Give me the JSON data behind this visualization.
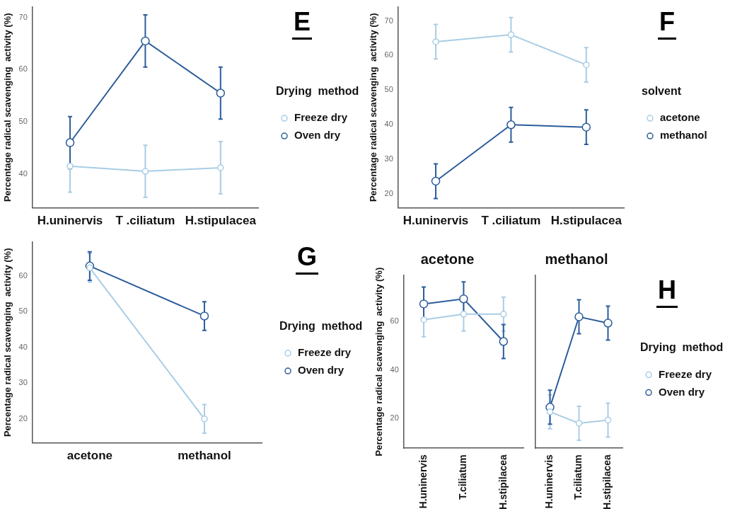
{
  "chart_data": [
    {
      "type": "line",
      "categories": [
        "H.uninervis",
        "T .ciliatum",
        "H.stipulacea"
      ],
      "ylabel": "Percentage radical scavenging  activity (%)",
      "legend_title": "Drying  method",
      "annotations": [
        "E"
      ],
      "ylim": [
        33.5,
        72
      ],
      "yticks": [
        40,
        50,
        60,
        70
      ],
      "grid": false,
      "legend": "right",
      "marker": "circle",
      "series": [
        {
          "name": "Freeze dry",
          "color": "#a9cde6",
          "values": [
            41.5,
            40.5,
            41.2
          ],
          "errors": [
            5,
            5,
            5
          ]
        },
        {
          "name": "Oven dry",
          "color": "#2c5d9b",
          "values": [
            46,
            65.5,
            55.5
          ],
          "errors": [
            5,
            5,
            5
          ]
        }
      ]
    },
    {
      "type": "line",
      "categories": [
        "H.uninervis",
        "T .ciliatum",
        "H.stipulacea"
      ],
      "ylabel": "Percentage radical scavenging  activity (%)",
      "legend_title": "solvent",
      "annotations": [
        "F"
      ],
      "ylim": [
        16,
        74
      ],
      "yticks": [
        20,
        30,
        40,
        50,
        60,
        70
      ],
      "grid": false,
      "legend": "right",
      "marker": "circle",
      "series": [
        {
          "name": "acetone",
          "color": "#a9cde6",
          "values": [
            64,
            66,
            57.3
          ],
          "errors": [
            5,
            5,
            5
          ]
        },
        {
          "name": "methanol",
          "color": "#2c5d9b",
          "values": [
            23.7,
            40,
            39.3
          ],
          "errors": [
            5,
            5,
            5
          ]
        }
      ]
    },
    {
      "type": "line",
      "categories": [
        "acetone",
        "methanol"
      ],
      "ylabel": "Percentage radical scavenging  activity (%)",
      "legend_title": "Drying  method",
      "annotations": [
        "G"
      ],
      "ylim": [
        13.3,
        69.5
      ],
      "yticks": [
        20,
        30,
        40,
        50,
        60
      ],
      "grid": false,
      "legend": "right",
      "marker": "circle",
      "series": [
        {
          "name": "Freeze dry",
          "color": "#a9cde6",
          "values": [
            62.3,
            20
          ],
          "errors": [
            4,
            4
          ]
        },
        {
          "name": "Oven dry",
          "color": "#2c5d9b",
          "values": [
            62.8,
            48.8
          ],
          "errors": [
            4,
            4
          ]
        }
      ]
    },
    {
      "type": "line",
      "title": "acetone",
      "categories": [
        "H.uninervis",
        "T.ciliatum",
        "H.stipilacea"
      ],
      "ylabel": "Percentage radical scavenging  activity (%)",
      "ylim": [
        7.7,
        79
      ],
      "yticks": [
        20,
        40,
        60
      ],
      "grid": false,
      "marker": "circle",
      "series": [
        {
          "color": "#a9cde6",
          "values": [
            60.7,
            63,
            63
          ],
          "errors": [
            7,
            7,
            7
          ]
        },
        {
          "color": "#2c5d9b",
          "values": [
            67.2,
            69.3,
            51.7
          ],
          "errors": [
            7,
            7,
            7
          ]
        }
      ]
    },
    {
      "type": "line",
      "title": "methanol",
      "categories": [
        "H.uninervis",
        "T.ciliatum",
        "H.stipilacea"
      ],
      "legend_title": "Drying  method",
      "annotations": [
        "H"
      ],
      "ylim": [
        7.7,
        79
      ],
      "yticks": [
        20,
        40,
        60
      ],
      "tick_labels": "x",
      "grid": false,
      "legend": "right",
      "marker": "circle",
      "series": [
        {
          "name": "Freeze dry",
          "color": "#a9cde6",
          "values": [
            22.7,
            18,
            19.3
          ],
          "errors": [
            7,
            7,
            7
          ]
        },
        {
          "name": "Oven dry",
          "color": "#2c5d9b",
          "values": [
            24.6,
            61.9,
            59.3
          ],
          "errors": [
            7,
            7,
            7
          ]
        }
      ]
    }
  ]
}
